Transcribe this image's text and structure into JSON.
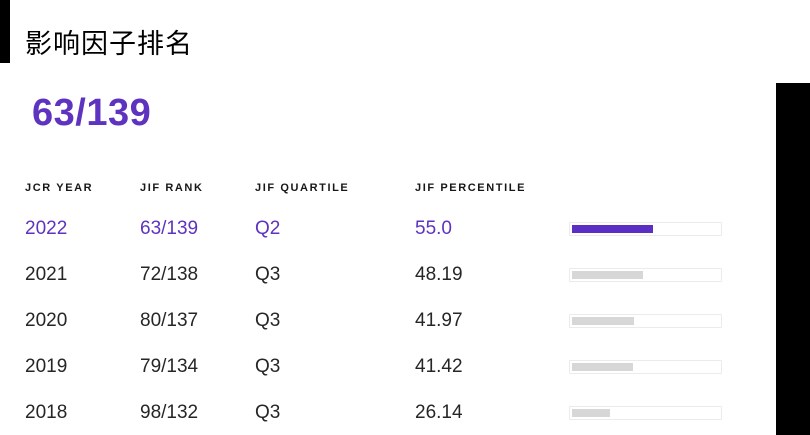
{
  "page": {
    "title": "影响因子排名",
    "current_rank": "63/139"
  },
  "table": {
    "headers": {
      "year": "JCR YEAR",
      "rank": "JIF RANK",
      "quartile": "JIF QUARTILE",
      "percentile": "JIF PERCENTILE"
    },
    "rows": [
      {
        "year": "2022",
        "rank": "63/139",
        "quartile": "Q2",
        "percentile": "55.0",
        "percent": 55.0,
        "highlight": true
      },
      {
        "year": "2021",
        "rank": "72/138",
        "quartile": "Q3",
        "percentile": "48.19",
        "percent": 48.19,
        "highlight": false
      },
      {
        "year": "2020",
        "rank": "80/137",
        "quartile": "Q3",
        "percentile": "41.97",
        "percent": 41.97,
        "highlight": false
      },
      {
        "year": "2019",
        "rank": "79/134",
        "quartile": "Q3",
        "percentile": "41.42",
        "percent": 41.42,
        "highlight": false
      },
      {
        "year": "2018",
        "rank": "98/132",
        "quartile": "Q3",
        "percentile": "26.14",
        "percent": 26.14,
        "highlight": false
      }
    ]
  },
  "colors": {
    "accent_purple": "#5e33bf",
    "bar_fill_active": "#5b2fc4",
    "bar_fill_inactive": "#d7d7d7",
    "bar_track_border": "#ebebeb",
    "row_text": "#262626",
    "header_text": "#171717",
    "edge_bar": "#000000"
  }
}
